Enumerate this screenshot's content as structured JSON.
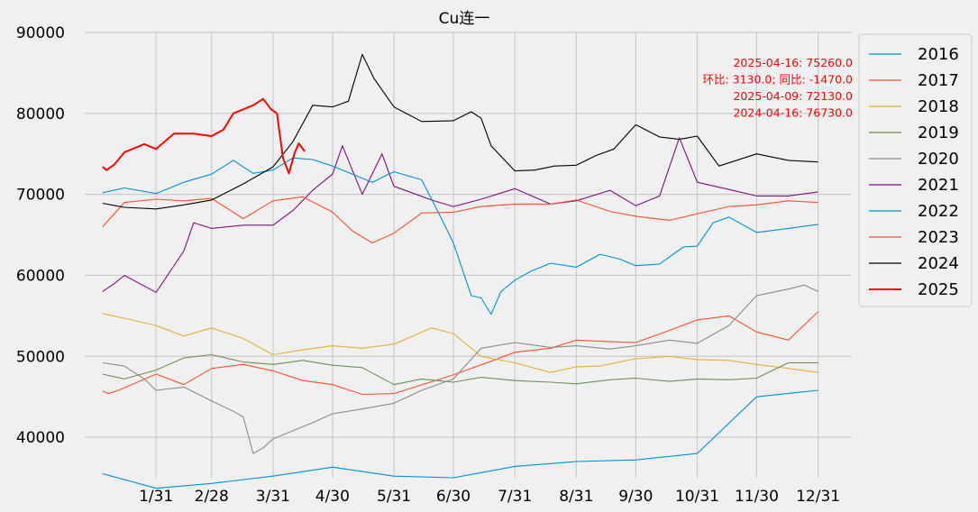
{
  "chart_data": {
    "type": "line",
    "title": "Cu连一",
    "xlabel": "",
    "ylabel": "",
    "x_ticks": [
      "1/31",
      "2/28",
      "3/31",
      "4/30",
      "5/31",
      "6/30",
      "7/31",
      "8/31",
      "9/30",
      "10/31",
      "11/30",
      "12/31"
    ],
    "x_tick_days": [
      31,
      59,
      90,
      120,
      151,
      181,
      212,
      243,
      273,
      304,
      334,
      365
    ],
    "y_ticks": [
      40000,
      50000,
      60000,
      70000,
      80000,
      90000
    ],
    "ylim": [
      35000,
      90000
    ],
    "xlim": [
      -5,
      382
    ],
    "grid": true,
    "legend_position": "right-outside-top",
    "annotations": [
      "2025-04-16: 75260.0",
      "环比: 3130.0; 同比: -1470.0",
      "2025-04-09: 72130.0",
      "2024-04-16: 76730.0"
    ],
    "series": [
      {
        "name": "2016",
        "color": "#008fd5",
        "points": [
          [
            4,
            35500
          ],
          [
            31,
            33700
          ],
          [
            59,
            34300
          ],
          [
            90,
            35200
          ],
          [
            120,
            36300
          ],
          [
            151,
            35200
          ],
          [
            181,
            35000
          ],
          [
            212,
            36400
          ],
          [
            243,
            37000
          ],
          [
            273,
            37200
          ],
          [
            304,
            38000
          ],
          [
            334,
            45000
          ],
          [
            365,
            45800
          ]
        ]
      },
      {
        "name": "2017",
        "color": "#fc4f30",
        "points": [
          [
            4,
            45700
          ],
          [
            7,
            45400
          ],
          [
            12,
            45800
          ],
          [
            31,
            47800
          ],
          [
            45,
            46500
          ],
          [
            59,
            48500
          ],
          [
            75,
            49000
          ],
          [
            90,
            48200
          ],
          [
            105,
            47000
          ],
          [
            120,
            46500
          ],
          [
            135,
            45300
          ],
          [
            151,
            45400
          ],
          [
            181,
            47700
          ],
          [
            200,
            49400
          ],
          [
            212,
            50500
          ],
          [
            230,
            51000
          ],
          [
            243,
            52000
          ],
          [
            260,
            51800
          ],
          [
            273,
            51700
          ],
          [
            290,
            53200
          ],
          [
            304,
            54500
          ],
          [
            320,
            55000
          ],
          [
            334,
            53000
          ],
          [
            350,
            52000
          ],
          [
            365,
            55500
          ]
        ]
      },
      {
        "name": "2018",
        "color": "#e5ae38",
        "points": [
          [
            4,
            55300
          ],
          [
            15,
            54700
          ],
          [
            31,
            53800
          ],
          [
            45,
            52500
          ],
          [
            59,
            53500
          ],
          [
            75,
            52200
          ],
          [
            90,
            50200
          ],
          [
            105,
            50800
          ],
          [
            120,
            51300
          ],
          [
            135,
            51000
          ],
          [
            151,
            51500
          ],
          [
            170,
            53500
          ],
          [
            181,
            52800
          ],
          [
            195,
            50000
          ],
          [
            212,
            49200
          ],
          [
            230,
            48000
          ],
          [
            243,
            48700
          ],
          [
            255,
            48800
          ],
          [
            273,
            49700
          ],
          [
            290,
            50000
          ],
          [
            304,
            49600
          ],
          [
            320,
            49500
          ],
          [
            334,
            49000
          ],
          [
            350,
            48500
          ],
          [
            365,
            48000
          ]
        ]
      },
      {
        "name": "2019",
        "color": "#6d904f",
        "points": [
          [
            4,
            47800
          ],
          [
            15,
            47200
          ],
          [
            31,
            48300
          ],
          [
            45,
            49800
          ],
          [
            59,
            50200
          ],
          [
            75,
            49300
          ],
          [
            90,
            49000
          ],
          [
            105,
            49500
          ],
          [
            120,
            48900
          ],
          [
            135,
            48600
          ],
          [
            151,
            46500
          ],
          [
            165,
            47200
          ],
          [
            181,
            46800
          ],
          [
            195,
            47400
          ],
          [
            212,
            47000
          ],
          [
            230,
            46800
          ],
          [
            243,
            46600
          ],
          [
            260,
            47100
          ],
          [
            273,
            47300
          ],
          [
            290,
            46900
          ],
          [
            304,
            47200
          ],
          [
            320,
            47100
          ],
          [
            334,
            47300
          ],
          [
            350,
            49200
          ],
          [
            365,
            49200
          ]
        ]
      },
      {
        "name": "2020",
        "color": "#8b8b8b",
        "points": [
          [
            4,
            49200
          ],
          [
            15,
            48800
          ],
          [
            25,
            47200
          ],
          [
            31,
            45800
          ],
          [
            45,
            46200
          ],
          [
            59,
            44500
          ],
          [
            70,
            43200
          ],
          [
            75,
            42500
          ],
          [
            80,
            38000
          ],
          [
            85,
            38700
          ],
          [
            90,
            39800
          ],
          [
            100,
            40800
          ],
          [
            110,
            41800
          ],
          [
            120,
            42900
          ],
          [
            135,
            43500
          ],
          [
            151,
            44200
          ],
          [
            165,
            45800
          ],
          [
            181,
            47200
          ],
          [
            195,
            51000
          ],
          [
            212,
            51700
          ],
          [
            230,
            51100
          ],
          [
            243,
            51300
          ],
          [
            260,
            50900
          ],
          [
            273,
            51300
          ],
          [
            290,
            52000
          ],
          [
            304,
            51600
          ],
          [
            320,
            53800
          ],
          [
            334,
            57500
          ],
          [
            350,
            58300
          ],
          [
            358,
            58800
          ],
          [
            365,
            58000
          ]
        ]
      },
      {
        "name": "2021",
        "color": "#810f7c",
        "points": [
          [
            4,
            58000
          ],
          [
            10,
            59000
          ],
          [
            15,
            60000
          ],
          [
            31,
            57900
          ],
          [
            45,
            63000
          ],
          [
            50,
            66500
          ],
          [
            59,
            65800
          ],
          [
            75,
            66200
          ],
          [
            90,
            66200
          ],
          [
            100,
            68000
          ],
          [
            110,
            70500
          ],
          [
            120,
            72500
          ],
          [
            125,
            76000
          ],
          [
            135,
            70000
          ],
          [
            145,
            75000
          ],
          [
            151,
            71000
          ],
          [
            160,
            70200
          ],
          [
            170,
            69300
          ],
          [
            181,
            68500
          ],
          [
            195,
            69400
          ],
          [
            212,
            70700
          ],
          [
            230,
            68800
          ],
          [
            243,
            69200
          ],
          [
            260,
            70500
          ],
          [
            273,
            68600
          ],
          [
            285,
            69800
          ],
          [
            295,
            77000
          ],
          [
            304,
            71500
          ],
          [
            320,
            70600
          ],
          [
            334,
            69800
          ],
          [
            350,
            69800
          ],
          [
            365,
            70300
          ]
        ]
      },
      {
        "name": "2022",
        "color": "#008fd5",
        "points": [
          [
            4,
            70200
          ],
          [
            15,
            70800
          ],
          [
            31,
            70100
          ],
          [
            45,
            71500
          ],
          [
            59,
            72500
          ],
          [
            70,
            74200
          ],
          [
            80,
            72600
          ],
          [
            90,
            73000
          ],
          [
            100,
            74500
          ],
          [
            110,
            74300
          ],
          [
            120,
            73500
          ],
          [
            130,
            72500
          ],
          [
            140,
            71500
          ],
          [
            151,
            72800
          ],
          [
            165,
            71800
          ],
          [
            175,
            67000
          ],
          [
            181,
            64000
          ],
          [
            190,
            57500
          ],
          [
            195,
            57200
          ],
          [
            200,
            55200
          ],
          [
            205,
            58000
          ],
          [
            212,
            59400
          ],
          [
            220,
            60500
          ],
          [
            230,
            61500
          ],
          [
            243,
            61000
          ],
          [
            255,
            62600
          ],
          [
            265,
            62000
          ],
          [
            273,
            61200
          ],
          [
            285,
            61400
          ],
          [
            297,
            63500
          ],
          [
            304,
            63600
          ],
          [
            312,
            66500
          ],
          [
            320,
            67200
          ],
          [
            334,
            65300
          ],
          [
            350,
            65800
          ],
          [
            365,
            66300
          ]
        ]
      },
      {
        "name": "2023",
        "color": "#fc4f30",
        "points": [
          [
            4,
            66000
          ],
          [
            15,
            69000
          ],
          [
            31,
            69400
          ],
          [
            45,
            69200
          ],
          [
            59,
            69500
          ],
          [
            75,
            67000
          ],
          [
            90,
            69200
          ],
          [
            105,
            69700
          ],
          [
            120,
            67800
          ],
          [
            130,
            65500
          ],
          [
            140,
            64000
          ],
          [
            151,
            65200
          ],
          [
            165,
            67700
          ],
          [
            181,
            67800
          ],
          [
            195,
            68500
          ],
          [
            212,
            68800
          ],
          [
            230,
            68800
          ],
          [
            243,
            69300
          ],
          [
            260,
            67900
          ],
          [
            273,
            67300
          ],
          [
            290,
            66800
          ],
          [
            304,
            67600
          ],
          [
            320,
            68500
          ],
          [
            334,
            68700
          ],
          [
            350,
            69200
          ],
          [
            365,
            69000
          ]
        ]
      },
      {
        "name": "2024",
        "color": "#000000",
        "points": [
          [
            4,
            68900
          ],
          [
            15,
            68400
          ],
          [
            31,
            68200
          ],
          [
            45,
            68700
          ],
          [
            59,
            69300
          ],
          [
            75,
            71300
          ],
          [
            90,
            73400
          ],
          [
            100,
            76500
          ],
          [
            110,
            81000
          ],
          [
            120,
            80800
          ],
          [
            128,
            81500
          ],
          [
            135,
            87300
          ],
          [
            141,
            84300
          ],
          [
            151,
            80800
          ],
          [
            165,
            79000
          ],
          [
            181,
            79100
          ],
          [
            190,
            80200
          ],
          [
            195,
            79400
          ],
          [
            200,
            76000
          ],
          [
            212,
            72900
          ],
          [
            222,
            73000
          ],
          [
            232,
            73500
          ],
          [
            243,
            73600
          ],
          [
            253,
            74800
          ],
          [
            262,
            75600
          ],
          [
            273,
            78600
          ],
          [
            285,
            77100
          ],
          [
            295,
            76800
          ],
          [
            304,
            77200
          ],
          [
            315,
            73500
          ],
          [
            334,
            75000
          ],
          [
            350,
            74200
          ],
          [
            365,
            74000
          ]
        ]
      },
      {
        "name": "2025",
        "color": "#ff0000",
        "points": [
          [
            4,
            73400
          ],
          [
            6,
            73000
          ],
          [
            10,
            73700
          ],
          [
            15,
            75200
          ],
          [
            25,
            76200
          ],
          [
            31,
            75600
          ],
          [
            40,
            77500
          ],
          [
            50,
            77500
          ],
          [
            59,
            77200
          ],
          [
            65,
            78000
          ],
          [
            70,
            80000
          ],
          [
            80,
            81000
          ],
          [
            85,
            81800
          ],
          [
            89,
            80500
          ],
          [
            92,
            80000
          ],
          [
            95,
            74500
          ],
          [
            98,
            72600
          ],
          [
            101,
            75200
          ],
          [
            103,
            76300
          ],
          [
            106,
            75300
          ]
        ]
      }
    ]
  }
}
